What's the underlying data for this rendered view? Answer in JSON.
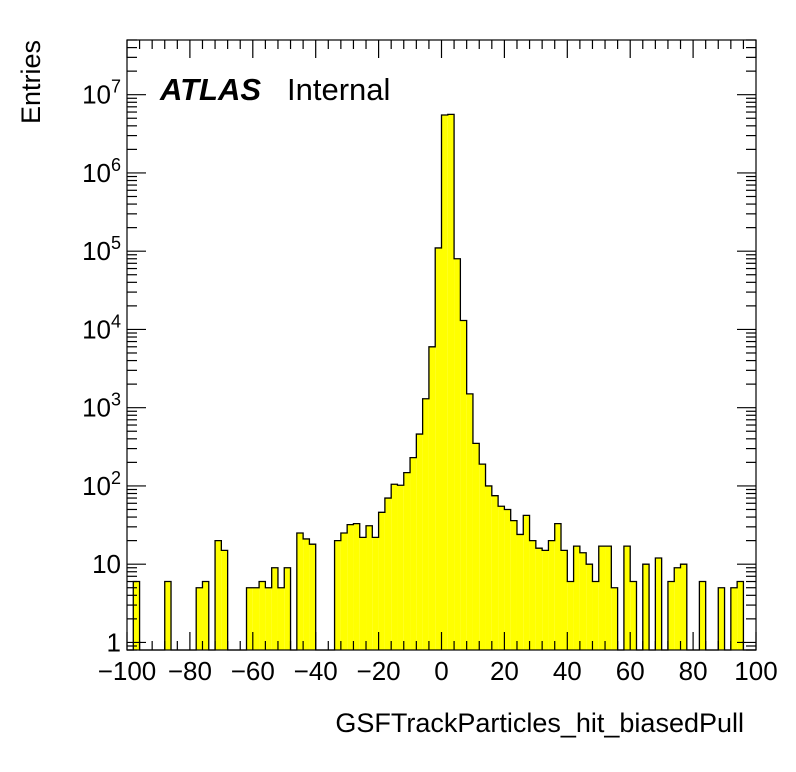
{
  "chart_data": {
    "type": "bar",
    "title": "",
    "xlabel": "GSFTrackParticles_hit_biasedPull",
    "ylabel": "Entries",
    "xlim": [
      -100,
      100
    ],
    "ylim": [
      0.8,
      50000000.0
    ],
    "log_y": true,
    "grid": false,
    "bar_color": "#ffff00",
    "edge_color": "#000000",
    "label_main": "ATLAS",
    "label_status": "Internal",
    "x_tick_labels": [
      "−100",
      "−80",
      "−60",
      "−40",
      "−20",
      "0",
      "20",
      "40",
      "60",
      "80",
      "100"
    ],
    "y_tick_labels": [
      {
        "base": "1",
        "exp": ""
      },
      {
        "base": "10",
        "exp": ""
      },
      {
        "base": "10",
        "exp": "2"
      },
      {
        "base": "10",
        "exp": "3"
      },
      {
        "base": "10",
        "exp": "4"
      },
      {
        "base": "10",
        "exp": "5"
      },
      {
        "base": "10",
        "exp": "6"
      },
      {
        "base": "10",
        "exp": "7"
      }
    ],
    "bin_edges_start": -100,
    "bin_width": 2,
    "values": [
      0,
      6,
      0,
      0,
      0,
      0,
      6,
      0,
      0,
      0,
      0,
      5,
      6,
      0,
      20,
      15,
      0,
      0,
      0,
      5,
      5,
      6,
      5,
      9,
      5,
      9,
      0,
      25,
      21,
      18,
      0,
      0,
      0,
      20,
      25,
      32,
      33,
      22,
      31,
      22,
      46,
      70,
      105,
      102,
      148,
      230,
      460,
      1300,
      6000,
      110000,
      5500000,
      5600000,
      80000,
      13000,
      1500,
      350,
      190,
      100,
      75,
      55,
      50,
      36,
      24,
      42,
      20,
      16,
      15,
      20,
      33,
      15,
      6,
      17,
      14,
      10,
      6,
      17,
      17,
      5,
      0,
      17,
      6,
      0,
      10,
      0,
      12,
      0,
      6,
      9,
      10,
      0,
      0,
      6,
      0,
      0,
      5,
      0,
      5,
      6,
      0,
      0
    ]
  }
}
